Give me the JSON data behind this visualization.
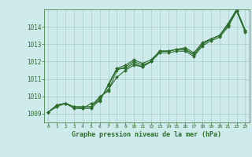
{
  "xlabel": "Graphe pression niveau de la mer (hPa)",
  "xlim": [
    -0.5,
    23.5
  ],
  "ylim": [
    1008.5,
    1015.0
  ],
  "yticks": [
    1009,
    1010,
    1011,
    1012,
    1013,
    1014
  ],
  "xticks": [
    0,
    1,
    2,
    3,
    4,
    5,
    6,
    7,
    8,
    9,
    10,
    11,
    12,
    13,
    14,
    15,
    16,
    17,
    18,
    19,
    20,
    21,
    22,
    23
  ],
  "bg_color": "#ceeaea",
  "grid_color": "#aacccc",
  "line_color": "#2d6e2d",
  "series1": [
    1009.1,
    1009.5,
    1009.6,
    1009.4,
    1009.4,
    1009.4,
    1009.9,
    1010.4,
    1011.1,
    1011.5,
    1011.8,
    1011.7,
    1012.0,
    1012.6,
    1012.6,
    1012.7,
    1012.7,
    1012.4,
    1013.0,
    1013.3,
    1013.5,
    1014.1,
    1014.9,
    1013.8
  ],
  "series2": [
    1009.1,
    1009.5,
    1009.6,
    1009.4,
    1009.3,
    1009.3,
    1009.8,
    1010.6,
    1011.6,
    1011.8,
    1012.1,
    1011.9,
    1012.1,
    1012.6,
    1012.6,
    1012.7,
    1012.8,
    1012.5,
    1013.1,
    1013.3,
    1013.5,
    1014.2,
    1015.0,
    1013.8
  ],
  "series3": [
    1009.1,
    1009.5,
    1009.6,
    1009.4,
    1009.4,
    1009.4,
    1010.0,
    1010.3,
    1011.5,
    1011.7,
    1012.0,
    1011.8,
    1012.0,
    1012.6,
    1012.6,
    1012.7,
    1012.7,
    1012.4,
    1013.0,
    1013.3,
    1013.5,
    1014.1,
    1015.0,
    1013.8
  ],
  "series4": [
    1009.1,
    1009.4,
    1009.6,
    1009.3,
    1009.3,
    1009.6,
    1009.7,
    1010.7,
    1011.6,
    1011.6,
    1011.9,
    1011.7,
    1012.0,
    1012.5,
    1012.5,
    1012.6,
    1012.6,
    1012.3,
    1012.9,
    1013.2,
    1013.4,
    1014.0,
    1014.9,
    1013.7
  ]
}
